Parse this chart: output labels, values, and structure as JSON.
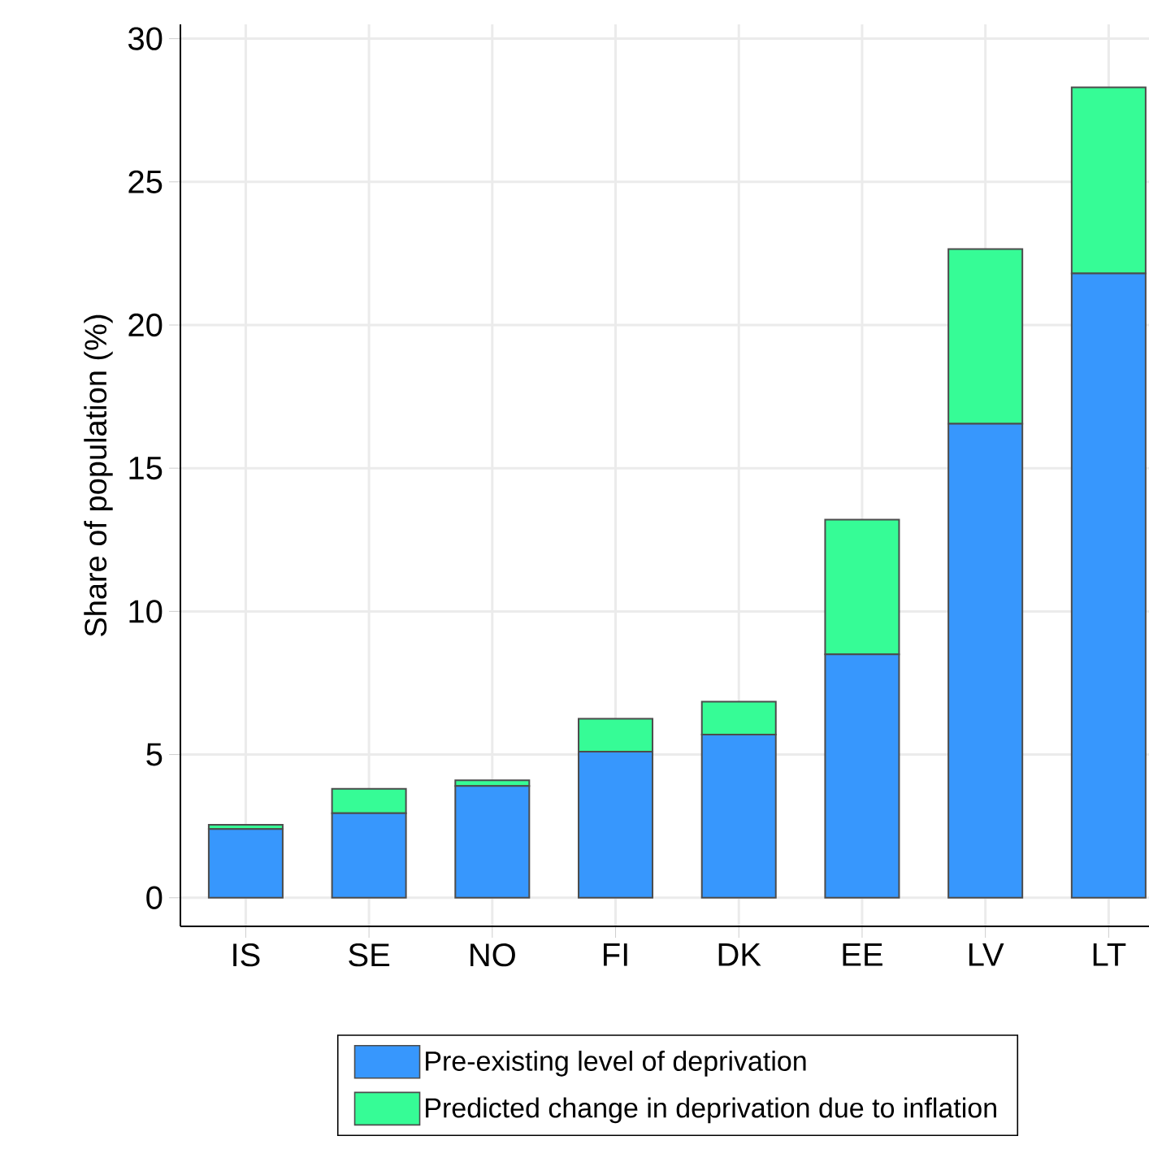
{
  "chart_data": {
    "type": "bar",
    "stacked": true,
    "ylabel": "Share of population (%)",
    "categories": [
      "IS",
      "SE",
      "NO",
      "FI",
      "DK",
      "EE",
      "LV",
      "LT"
    ],
    "series": [
      {
        "name": "Pre-existing level of deprivation",
        "color": "#3797fd",
        "values": [
          2.4,
          2.95,
          3.9,
          5.1,
          5.7,
          8.5,
          16.55,
          21.8
        ]
      },
      {
        "name": "Predicted change in deprivation due to inflation",
        "color": "#36fc96",
        "values": [
          0.15,
          0.85,
          0.2,
          1.15,
          1.15,
          4.7,
          6.1,
          6.5
        ]
      }
    ],
    "ylim": [
      -1,
      30.5
    ],
    "yticks": [
      0,
      5,
      10,
      15,
      20,
      25,
      30
    ],
    "grid": true,
    "legend": "bottom"
  }
}
